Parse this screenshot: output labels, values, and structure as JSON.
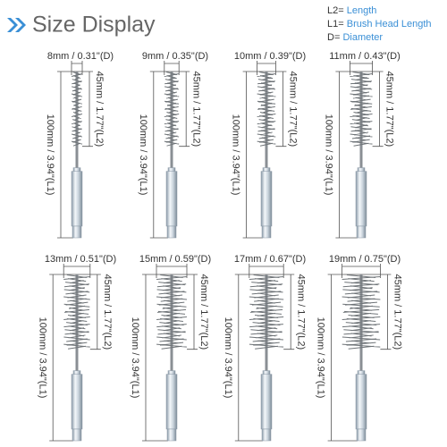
{
  "header": {
    "title": "Size Display"
  },
  "legend": [
    {
      "key": "L2=",
      "term": "Length"
    },
    {
      "key": "L1=",
      "term": "Brush Head Length"
    },
    {
      "key": "D=",
      "term": "Diameter"
    }
  ],
  "items": [
    {
      "diameter": "8mm / 0.31\"(D)",
      "head_length": "45mm / 1.77\"(L2)",
      "total_length": "100mm / 3.94\"(L1)"
    },
    {
      "diameter": "9mm / 0.35\"(D)",
      "head_length": "45mm / 1.77\"(L2)",
      "total_length": "100mm / 3.94\"(L1)"
    },
    {
      "diameter": "10mm / 0.39\"(D)",
      "head_length": "45mm / 1.77\"(L2)",
      "total_length": "100mm / 3.94\"(L1)"
    },
    {
      "diameter": "11mm / 0.43\"(D)",
      "head_length": "45mm / 1.77\"(L2)",
      "total_length": "100mm / 3.94\"(L1)"
    },
    {
      "diameter": "13mm / 0.51\"(D)",
      "head_length": "45mm / 1.77\"(L2)",
      "total_length": "100mm / 3.94\"(L1)"
    },
    {
      "diameter": "15mm / 0.59\"(D)",
      "head_length": "45mm / 1.77\"(L2)",
      "total_length": "100mm / 3.94\"(L1)"
    },
    {
      "diameter": "17mm / 0.67\"(D)",
      "head_length": "45mm / 1.77\"(L2)",
      "total_length": "100mm / 3.94\"(L1)"
    },
    {
      "diameter": "19mm / 0.75\"(D)",
      "head_length": "45mm / 1.77\"(L2)",
      "total_length": "100mm / 3.94\"(L1)"
    }
  ]
}
